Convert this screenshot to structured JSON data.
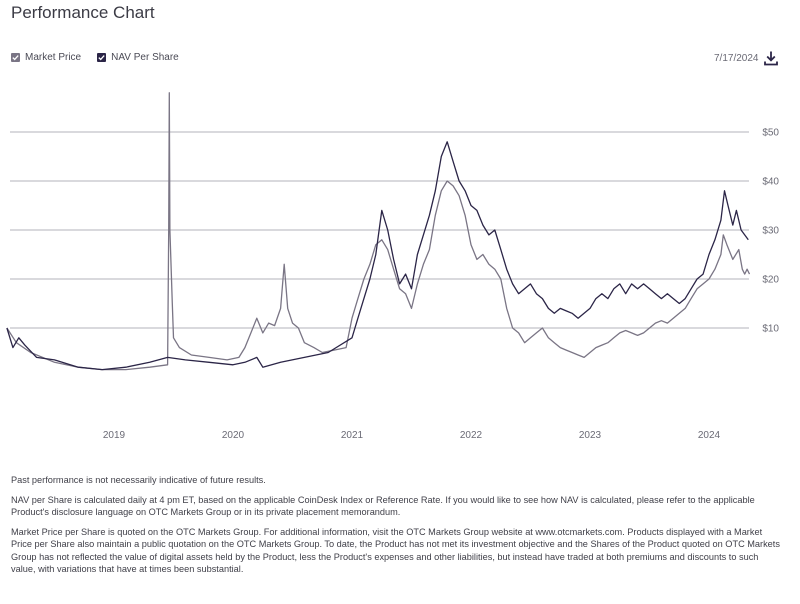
{
  "header": {
    "title": "Performance Chart",
    "date": "7/17/2024"
  },
  "icons": {
    "download": "download-icon",
    "checkbox": "checkbox-checked-icon"
  },
  "colors": {
    "market_price": "#7a7585",
    "nav": "#2b2547",
    "grid": "#9a9aa5",
    "axis_text": "#6a6a75"
  },
  "chart_data": {
    "type": "line",
    "title": "Performance Chart",
    "xlabel": "",
    "ylabel": "",
    "x_ticks": [
      "2019",
      "2020",
      "2021",
      "2022",
      "2023",
      "2024"
    ],
    "y_ticks": [
      "$10",
      "$20",
      "$30",
      "$40",
      "$50"
    ],
    "y_tick_values": [
      10,
      20,
      30,
      40,
      50
    ],
    "ylim": [
      -10,
      58
    ],
    "xlim": [
      2018.1,
      2024.35
    ],
    "grid": true,
    "legend_position": "top-left",
    "series": [
      {
        "name": "Market Price",
        "color": "#7a7585",
        "points": [
          [
            2018.1,
            10.0
          ],
          [
            2018.18,
            7.0
          ],
          [
            2018.3,
            5.0
          ],
          [
            2018.5,
            3.0
          ],
          [
            2018.7,
            2.0
          ],
          [
            2018.9,
            1.5
          ],
          [
            2019.1,
            1.5
          ],
          [
            2019.3,
            2.0
          ],
          [
            2019.45,
            2.5
          ],
          [
            2019.46,
            30.0
          ],
          [
            2019.465,
            58.0
          ],
          [
            2019.47,
            30.0
          ],
          [
            2019.49,
            15.0
          ],
          [
            2019.5,
            8.0
          ],
          [
            2019.55,
            6.0
          ],
          [
            2019.65,
            4.5
          ],
          [
            2019.8,
            4.0
          ],
          [
            2019.95,
            3.5
          ],
          [
            2020.05,
            4.0
          ],
          [
            2020.1,
            6.0
          ],
          [
            2020.15,
            9.0
          ],
          [
            2020.2,
            12.0
          ],
          [
            2020.25,
            9.0
          ],
          [
            2020.3,
            11.0
          ],
          [
            2020.35,
            10.5
          ],
          [
            2020.4,
            14.0
          ],
          [
            2020.43,
            23.0
          ],
          [
            2020.46,
            14.0
          ],
          [
            2020.5,
            11.0
          ],
          [
            2020.55,
            10.0
          ],
          [
            2020.6,
            7.0
          ],
          [
            2020.68,
            6.0
          ],
          [
            2020.75,
            5.0
          ],
          [
            2020.85,
            5.5
          ],
          [
            2020.95,
            6.0
          ],
          [
            2021.0,
            12.0
          ],
          [
            2021.05,
            16.0
          ],
          [
            2021.1,
            20.0
          ],
          [
            2021.15,
            23.0
          ],
          [
            2021.2,
            27.0
          ],
          [
            2021.25,
            28.0
          ],
          [
            2021.3,
            26.0
          ],
          [
            2021.35,
            22.0
          ],
          [
            2021.4,
            18.0
          ],
          [
            2021.45,
            17.0
          ],
          [
            2021.5,
            14.0
          ],
          [
            2021.55,
            19.0
          ],
          [
            2021.6,
            23.0
          ],
          [
            2021.65,
            26.0
          ],
          [
            2021.7,
            33.0
          ],
          [
            2021.75,
            38.0
          ],
          [
            2021.8,
            40.0
          ],
          [
            2021.85,
            39.0
          ],
          [
            2021.9,
            37.0
          ],
          [
            2021.95,
            33.0
          ],
          [
            2022.0,
            27.0
          ],
          [
            2022.05,
            24.0
          ],
          [
            2022.1,
            25.0
          ],
          [
            2022.15,
            23.0
          ],
          [
            2022.2,
            22.0
          ],
          [
            2022.25,
            20.0
          ],
          [
            2022.3,
            14.0
          ],
          [
            2022.35,
            10.0
          ],
          [
            2022.4,
            9.0
          ],
          [
            2022.45,
            7.0
          ],
          [
            2022.5,
            8.0
          ],
          [
            2022.55,
            9.0
          ],
          [
            2022.6,
            10.0
          ],
          [
            2022.65,
            8.0
          ],
          [
            2022.7,
            7.0
          ],
          [
            2022.75,
            6.0
          ],
          [
            2022.8,
            5.5
          ],
          [
            2022.85,
            5.0
          ],
          [
            2022.9,
            4.5
          ],
          [
            2022.95,
            4.0
          ],
          [
            2023.0,
            5.0
          ],
          [
            2023.05,
            6.0
          ],
          [
            2023.1,
            6.5
          ],
          [
            2023.15,
            7.0
          ],
          [
            2023.2,
            8.0
          ],
          [
            2023.25,
            9.0
          ],
          [
            2023.3,
            9.5
          ],
          [
            2023.35,
            9.0
          ],
          [
            2023.4,
            8.5
          ],
          [
            2023.45,
            9.0
          ],
          [
            2023.5,
            10.0
          ],
          [
            2023.55,
            11.0
          ],
          [
            2023.6,
            11.5
          ],
          [
            2023.65,
            11.0
          ],
          [
            2023.7,
            12.0
          ],
          [
            2023.75,
            13.0
          ],
          [
            2023.8,
            14.0
          ],
          [
            2023.85,
            16.0
          ],
          [
            2023.9,
            18.0
          ],
          [
            2023.95,
            19.0
          ],
          [
            2024.0,
            20.0
          ],
          [
            2024.05,
            22.0
          ],
          [
            2024.1,
            25.0
          ],
          [
            2024.12,
            29.0
          ],
          [
            2024.15,
            27.0
          ],
          [
            2024.2,
            24.0
          ],
          [
            2024.25,
            26.0
          ],
          [
            2024.28,
            22.0
          ],
          [
            2024.3,
            21.0
          ],
          [
            2024.32,
            22.0
          ],
          [
            2024.34,
            21.0
          ]
        ]
      },
      {
        "name": "NAV Per Share",
        "color": "#2b2547",
        "points": [
          [
            2018.1,
            10.0
          ],
          [
            2018.15,
            6.0
          ],
          [
            2018.2,
            8.0
          ],
          [
            2018.25,
            6.5
          ],
          [
            2018.35,
            4.0
          ],
          [
            2018.5,
            3.5
          ],
          [
            2018.7,
            2.0
          ],
          [
            2018.9,
            1.5
          ],
          [
            2019.1,
            2.0
          ],
          [
            2019.3,
            3.0
          ],
          [
            2019.45,
            4.0
          ],
          [
            2019.6,
            3.5
          ],
          [
            2019.8,
            3.0
          ],
          [
            2020.0,
            2.5
          ],
          [
            2020.1,
            3.0
          ],
          [
            2020.2,
            4.0
          ],
          [
            2020.25,
            2.0
          ],
          [
            2020.4,
            3.0
          ],
          [
            2020.6,
            4.0
          ],
          [
            2020.8,
            5.0
          ],
          [
            2021.0,
            8.0
          ],
          [
            2021.05,
            12.0
          ],
          [
            2021.1,
            16.0
          ],
          [
            2021.15,
            20.0
          ],
          [
            2021.2,
            25.0
          ],
          [
            2021.25,
            34.0
          ],
          [
            2021.3,
            30.0
          ],
          [
            2021.35,
            24.0
          ],
          [
            2021.4,
            19.0
          ],
          [
            2021.45,
            21.0
          ],
          [
            2021.5,
            18.0
          ],
          [
            2021.55,
            25.0
          ],
          [
            2021.6,
            29.0
          ],
          [
            2021.65,
            33.0
          ],
          [
            2021.7,
            38.0
          ],
          [
            2021.75,
            45.0
          ],
          [
            2021.8,
            48.0
          ],
          [
            2021.85,
            44.0
          ],
          [
            2021.9,
            40.0
          ],
          [
            2021.95,
            38.0
          ],
          [
            2022.0,
            35.0
          ],
          [
            2022.05,
            34.0
          ],
          [
            2022.1,
            31.0
          ],
          [
            2022.15,
            29.0
          ],
          [
            2022.2,
            30.0
          ],
          [
            2022.25,
            26.0
          ],
          [
            2022.3,
            22.0
          ],
          [
            2022.35,
            19.0
          ],
          [
            2022.4,
            17.0
          ],
          [
            2022.45,
            18.0
          ],
          [
            2022.5,
            19.0
          ],
          [
            2022.55,
            17.0
          ],
          [
            2022.6,
            16.0
          ],
          [
            2022.65,
            14.0
          ],
          [
            2022.7,
            13.0
          ],
          [
            2022.75,
            14.0
          ],
          [
            2022.8,
            13.5
          ],
          [
            2022.85,
            13.0
          ],
          [
            2022.9,
            12.0
          ],
          [
            2022.95,
            13.0
          ],
          [
            2023.0,
            14.0
          ],
          [
            2023.05,
            16.0
          ],
          [
            2023.1,
            17.0
          ],
          [
            2023.15,
            16.0
          ],
          [
            2023.2,
            18.0
          ],
          [
            2023.25,
            19.0
          ],
          [
            2023.3,
            17.0
          ],
          [
            2023.35,
            19.0
          ],
          [
            2023.4,
            18.0
          ],
          [
            2023.45,
            19.0
          ],
          [
            2023.5,
            18.0
          ],
          [
            2023.55,
            17.0
          ],
          [
            2023.6,
            16.0
          ],
          [
            2023.65,
            17.0
          ],
          [
            2023.7,
            16.0
          ],
          [
            2023.75,
            15.0
          ],
          [
            2023.8,
            16.0
          ],
          [
            2023.85,
            18.0
          ],
          [
            2023.9,
            20.0
          ],
          [
            2023.95,
            21.0
          ],
          [
            2024.0,
            25.0
          ],
          [
            2024.05,
            28.0
          ],
          [
            2024.1,
            32.0
          ],
          [
            2024.13,
            38.0
          ],
          [
            2024.16,
            35.0
          ],
          [
            2024.2,
            31.0
          ],
          [
            2024.23,
            34.0
          ],
          [
            2024.27,
            30.0
          ],
          [
            2024.3,
            29.0
          ],
          [
            2024.33,
            28.0
          ]
        ]
      }
    ]
  },
  "notes": [
    "Past performance is not necessarily indicative of future results.",
    "NAV per Share is calculated daily at 4 pm ET, based on the applicable CoinDesk Index or Reference Rate. If you would like to see how NAV is calculated, please refer to the applicable Product's disclosure language on OTC Markets Group or in its private placement memorandum.",
    "Market Price per Share is quoted on the OTC Markets Group. For additional information, visit the OTC Markets Group website at www.otcmarkets.com. Products displayed with a Market Price per Share also maintain a public quotation on the OTC Markets Group. To date, the Product has not met its investment objective and the Shares of the Product quoted on OTC Markets Group has not reflected the value of digital assets held by the Product, less the Product's expenses and other liabilities, but instead have traded at both premiums and discounts to such value, with variations that have at times been substantial."
  ]
}
